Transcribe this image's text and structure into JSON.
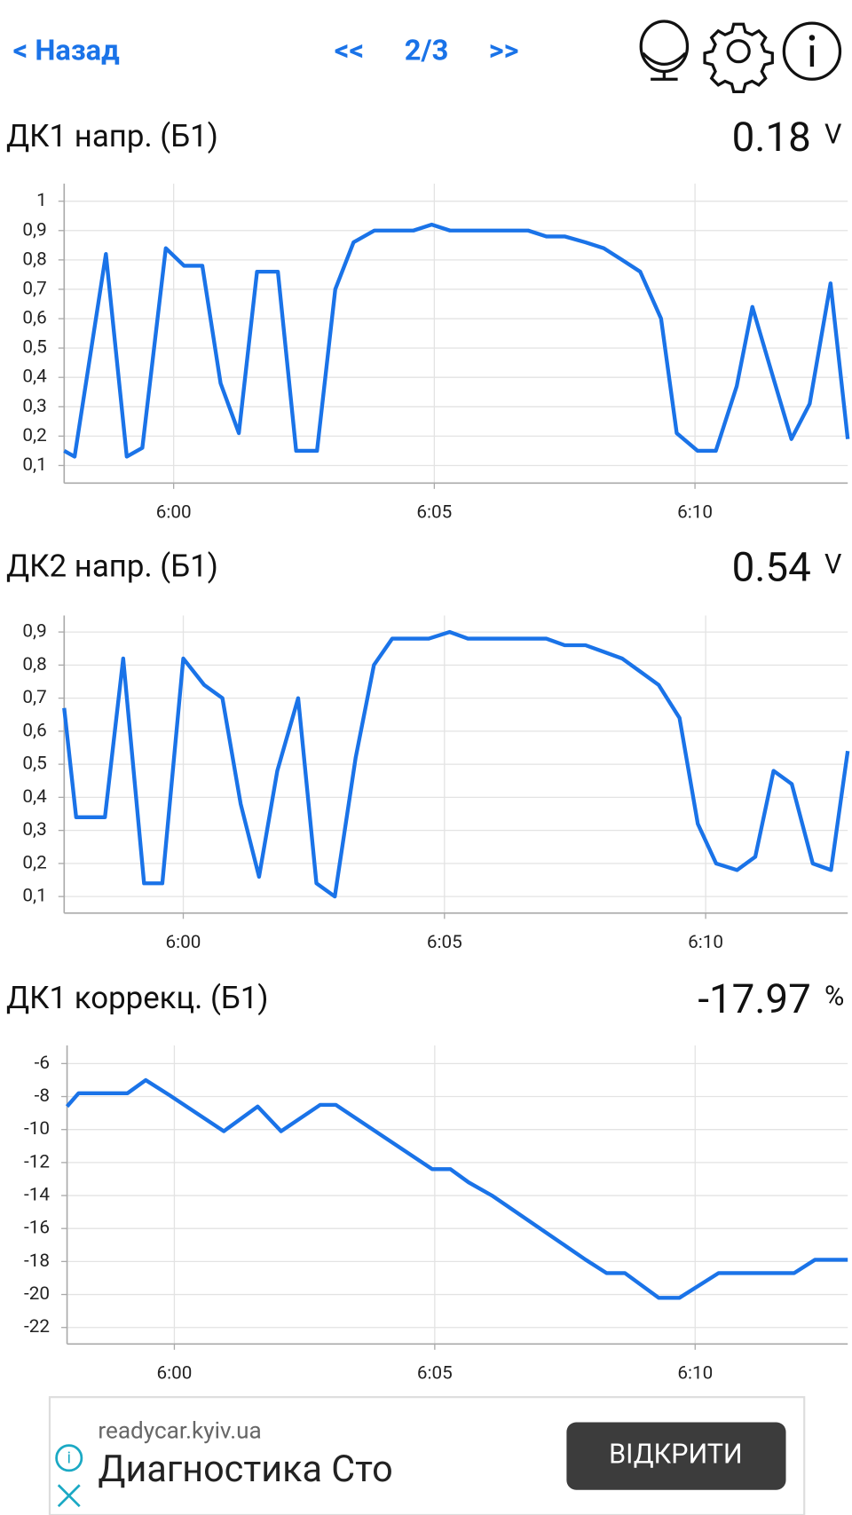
{
  "header": {
    "back": "< Назад",
    "prev": "<<",
    "page": "2/3",
    "next": ">>"
  },
  "chart_data": [
    {
      "type": "line",
      "title": "ДК1 напр. (Б1)",
      "current": 0.18,
      "unit": "V",
      "color": "#1a73e8",
      "x": [
        357.9,
        358.1,
        358.7,
        359.1,
        359.4,
        359.85,
        360.2,
        360.55,
        360.9,
        361.25,
        361.6,
        362.0,
        362.35,
        362.75,
        363.1,
        363.45,
        363.85,
        364.2,
        364.6,
        364.95,
        365.3,
        365.65,
        366.05,
        366.4,
        366.8,
        367.15,
        367.5,
        367.9,
        368.25,
        368.6,
        368.95,
        369.35,
        369.65,
        370.05,
        370.4,
        370.8,
        371.1,
        371.5,
        371.85,
        372.2,
        372.6,
        372.93
      ],
      "values": [
        0.15,
        0.13,
        0.82,
        0.13,
        0.16,
        0.84,
        0.78,
        0.78,
        0.38,
        0.21,
        0.76,
        0.76,
        0.15,
        0.15,
        0.7,
        0.86,
        0.9,
        0.9,
        0.9,
        0.92,
        0.9,
        0.9,
        0.9,
        0.9,
        0.9,
        0.88,
        0.88,
        0.86,
        0.84,
        0.8,
        0.76,
        0.6,
        0.21,
        0.15,
        0.15,
        0.37,
        0.64,
        0.4,
        0.19,
        0.31,
        0.72,
        0.19
      ],
      "xlim": [
        357.9,
        372.93
      ],
      "xticks": [
        {
          "value": 360,
          "label": "6:00"
        },
        {
          "value": 365,
          "label": "6:05"
        },
        {
          "value": 370,
          "label": "6:10"
        }
      ],
      "ylim": [
        0.04,
        1.06
      ],
      "yticks": [
        {
          "value": 0.1,
          "label": "0,1"
        },
        {
          "value": 0.2,
          "label": "0,2"
        },
        {
          "value": 0.3,
          "label": "0,3"
        },
        {
          "value": 0.4,
          "label": "0,4"
        },
        {
          "value": 0.5,
          "label": "0,5"
        },
        {
          "value": 0.6,
          "label": "0,6"
        },
        {
          "value": 0.7,
          "label": "0,7"
        },
        {
          "value": 0.8,
          "label": "0,8"
        },
        {
          "value": 0.9,
          "label": "0,9"
        },
        1
      ],
      "grid": true
    },
    {
      "type": "line",
      "title": "ДК2 напр. (Б1)",
      "current": 0.54,
      "unit": "V",
      "color": "#1a73e8",
      "x": [
        357.72,
        357.95,
        358.5,
        358.85,
        359.25,
        359.6,
        360.0,
        360.4,
        360.75,
        361.1,
        361.45,
        361.8,
        362.2,
        362.55,
        362.9,
        363.3,
        363.65,
        364.0,
        364.4,
        364.7,
        365.1,
        365.45,
        365.85,
        366.2,
        366.6,
        366.95,
        367.3,
        367.7,
        368.05,
        368.4,
        368.75,
        369.1,
        369.5,
        369.85,
        370.2,
        370.6,
        370.95,
        371.3,
        371.65,
        372.05,
        372.4,
        372.72
      ],
      "values": [
        0.67,
        0.34,
        0.34,
        0.82,
        0.14,
        0.14,
        0.82,
        0.74,
        0.7,
        0.38,
        0.16,
        0.48,
        0.7,
        0.14,
        0.1,
        0.52,
        0.8,
        0.88,
        0.88,
        0.88,
        0.9,
        0.88,
        0.88,
        0.88,
        0.88,
        0.88,
        0.86,
        0.86,
        0.84,
        0.82,
        0.78,
        0.74,
        0.64,
        0.32,
        0.2,
        0.18,
        0.22,
        0.48,
        0.44,
        0.2,
        0.18,
        0.54
      ],
      "xlim": [
        357.72,
        372.72
      ],
      "xticks": [
        {
          "value": 360,
          "label": "6:00"
        },
        {
          "value": 365,
          "label": "6:05"
        },
        {
          "value": 370,
          "label": "6:10"
        }
      ],
      "ylim": [
        0.05,
        0.95
      ],
      "yticks": [
        {
          "value": 0.1,
          "label": "0,1"
        },
        {
          "value": 0.2,
          "label": "0,2"
        },
        {
          "value": 0.3,
          "label": "0,3"
        },
        {
          "value": 0.4,
          "label": "0,4"
        },
        {
          "value": 0.5,
          "label": "0,5"
        },
        {
          "value": 0.6,
          "label": "0,6"
        },
        {
          "value": 0.7,
          "label": "0,7"
        },
        {
          "value": 0.8,
          "label": "0,8"
        },
        {
          "value": 0.9,
          "label": "0,9"
        }
      ],
      "grid": true
    },
    {
      "type": "line",
      "title": "ДК1 коррекц. (Б1)",
      "current": -17.97,
      "unit": "%",
      "color": "#1a73e8",
      "x": [
        357.94,
        358.16,
        358.55,
        359.1,
        359.45,
        359.9,
        360.95,
        361.6,
        362.05,
        362.8,
        363.1,
        364.95,
        365.3,
        365.65,
        366.1,
        367.9,
        368.3,
        368.65,
        369.3,
        369.7,
        370.45,
        371.9,
        372.3,
        372.93
      ],
      "values": [
        -8.6,
        -7.8,
        -7.8,
        -7.8,
        -7.0,
        -7.9,
        -10.1,
        -8.6,
        -10.1,
        -8.5,
        -8.5,
        -12.4,
        -12.4,
        -13.2,
        -14.0,
        -17.9,
        -18.7,
        -18.7,
        -20.2,
        -20.2,
        -18.7,
        -18.7,
        -17.9,
        -17.9
      ],
      "xlim": [
        357.94,
        372.93
      ],
      "xticks": [
        {
          "value": 360,
          "label": "6:00"
        },
        {
          "value": 365,
          "label": "6:05"
        },
        {
          "value": 370,
          "label": "6:10"
        }
      ],
      "ylim": [
        -23,
        -4.9
      ],
      "yticks": [
        -6,
        -8,
        -10,
        -12,
        -14,
        -16,
        -18,
        -20,
        -22
      ],
      "grid": true
    }
  ],
  "ad": {
    "domain": "readycar.kyiv.ua",
    "title": "Диагностика Сто",
    "button": "ВІДКРИТИ"
  }
}
